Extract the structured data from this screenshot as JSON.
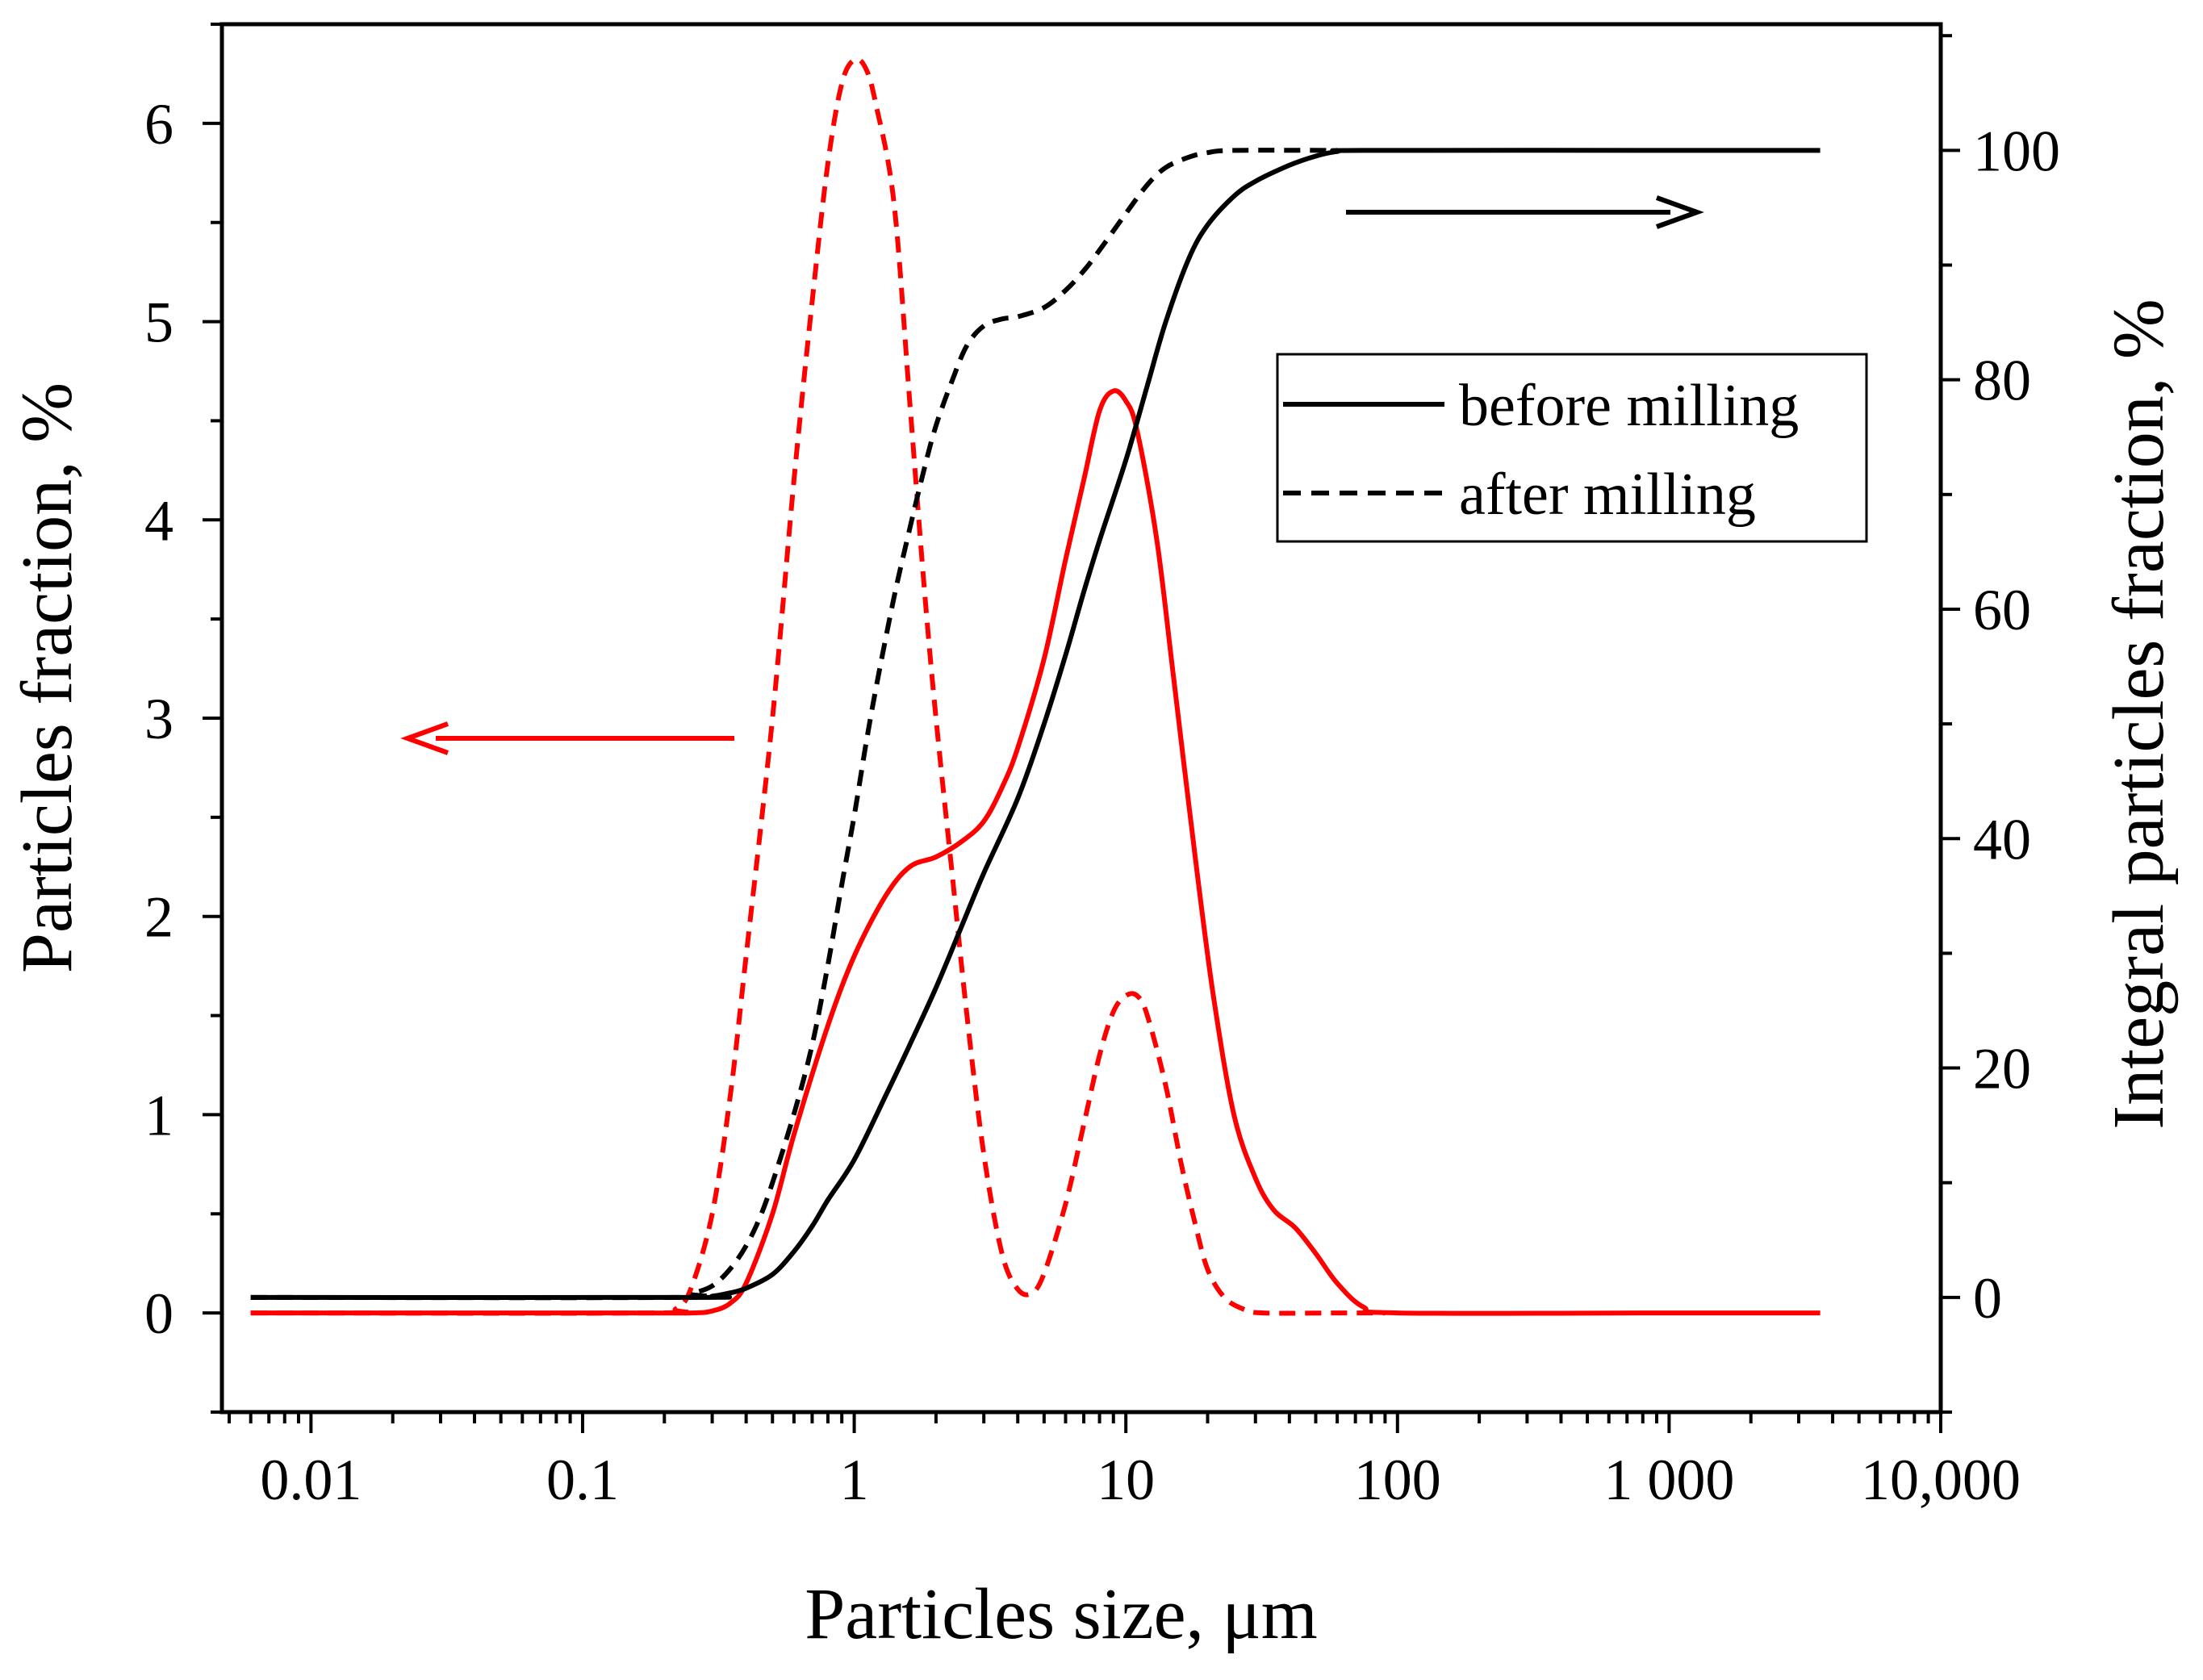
{
  "chart_data": {
    "type": "line",
    "title": "",
    "xlabel": "Particles size, μm",
    "ylabel": "Particles fraction, %",
    "y2label": "Integral particles fraction, %",
    "xscale": "log",
    "xlim": [
      0.0047,
      10000
    ],
    "ylim": [
      -0.5,
      6.5
    ],
    "y2lim": [
      -10,
      111
    ],
    "x_tick_values": [
      0.01,
      0.1,
      1,
      10,
      100,
      1000,
      10000
    ],
    "x_tick_labels": [
      "0.01",
      "0.1",
      "1",
      "10",
      "100",
      "1 000",
      "10,000"
    ],
    "y_ticks": [
      0,
      1,
      2,
      3,
      4,
      5,
      6
    ],
    "y2_ticks": [
      0,
      20,
      40,
      60,
      80,
      100
    ],
    "legend": {
      "position": "top-right",
      "entries": [
        {
          "label": "before milling",
          "style": "solid"
        },
        {
          "label": "after milling",
          "style": "dashed"
        }
      ]
    },
    "annotations": [
      {
        "type": "arrow",
        "direction": "left",
        "meaning": "red curves use left axis",
        "color": "#ff0000"
      },
      {
        "type": "arrow",
        "direction": "right",
        "meaning": "black curves use right axis",
        "color": "#000000"
      }
    ],
    "series": [
      {
        "name": "before milling (fraction)",
        "axis": "left",
        "color": "#ff0000",
        "style": "solid",
        "points": [
          [
            0.006,
            0
          ],
          [
            0.15,
            0
          ],
          [
            0.25,
            0.0
          ],
          [
            0.3,
            0.01
          ],
          [
            0.35,
            0.05
          ],
          [
            0.4,
            0.15
          ],
          [
            0.5,
            0.5
          ],
          [
            0.6,
            0.9
          ],
          [
            0.8,
            1.45
          ],
          [
            1.0,
            1.8
          ],
          [
            1.3,
            2.1
          ],
          [
            1.6,
            2.25
          ],
          [
            2.0,
            2.3
          ],
          [
            2.5,
            2.38
          ],
          [
            3.0,
            2.48
          ],
          [
            3.5,
            2.65
          ],
          [
            4.0,
            2.85
          ],
          [
            5.0,
            3.3
          ],
          [
            6.0,
            3.8
          ],
          [
            7.0,
            4.2
          ],
          [
            8.0,
            4.55
          ],
          [
            9.0,
            4.65
          ],
          [
            10.0,
            4.6
          ],
          [
            11.0,
            4.45
          ],
          [
            13.0,
            3.9
          ],
          [
            15.0,
            3.2
          ],
          [
            18.0,
            2.3
          ],
          [
            21.0,
            1.6
          ],
          [
            25.0,
            1.0
          ],
          [
            30.0,
            0.68
          ],
          [
            35.0,
            0.52
          ],
          [
            42.0,
            0.43
          ],
          [
            50.0,
            0.3
          ],
          [
            60.0,
            0.15
          ],
          [
            75.0,
            0.03
          ],
          [
            100.0,
            0
          ],
          [
            1000,
            0
          ],
          [
            3600,
            0
          ]
        ]
      },
      {
        "name": "after milling (fraction)",
        "axis": "left",
        "color": "#ff0000",
        "style": "dashed",
        "points": [
          [
            0.006,
            0
          ],
          [
            0.18,
            0
          ],
          [
            0.22,
            0.02
          ],
          [
            0.25,
            0.12
          ],
          [
            0.3,
            0.5
          ],
          [
            0.35,
            1.1
          ],
          [
            0.4,
            1.8
          ],
          [
            0.5,
            3.0
          ],
          [
            0.6,
            4.2
          ],
          [
            0.7,
            5.1
          ],
          [
            0.8,
            5.8
          ],
          [
            0.9,
            6.2
          ],
          [
            1.0,
            6.32
          ],
          [
            1.1,
            6.28
          ],
          [
            1.2,
            6.1
          ],
          [
            1.4,
            5.6
          ],
          [
            1.6,
            4.6
          ],
          [
            1.8,
            3.7
          ],
          [
            2.0,
            3.0
          ],
          [
            2.3,
            2.2
          ],
          [
            2.6,
            1.5
          ],
          [
            3.0,
            0.8
          ],
          [
            3.5,
            0.3
          ],
          [
            4.0,
            0.12
          ],
          [
            4.5,
            0.1
          ],
          [
            5.0,
            0.2
          ],
          [
            6.0,
            0.55
          ],
          [
            7.0,
            0.95
          ],
          [
            8.0,
            1.3
          ],
          [
            9.0,
            1.52
          ],
          [
            10.0,
            1.6
          ],
          [
            11.0,
            1.6
          ],
          [
            12.0,
            1.5
          ],
          [
            14.0,
            1.15
          ],
          [
            16.0,
            0.75
          ],
          [
            18.0,
            0.45
          ],
          [
            20.0,
            0.22
          ],
          [
            23.0,
            0.08
          ],
          [
            27.0,
            0.02
          ],
          [
            32.0,
            0.0
          ],
          [
            60.0,
            0
          ],
          [
            90.0,
            0
          ]
        ]
      },
      {
        "name": "before milling (integral)",
        "axis": "right",
        "color": "#000000",
        "style": "solid",
        "points": [
          [
            0.006,
            0
          ],
          [
            0.25,
            0
          ],
          [
            0.3,
            0.1
          ],
          [
            0.35,
            0.4
          ],
          [
            0.4,
            0.8
          ],
          [
            0.5,
            2.0
          ],
          [
            0.6,
            4.0
          ],
          [
            0.7,
            6.2
          ],
          [
            0.8,
            8.5
          ],
          [
            1.0,
            12.0
          ],
          [
            1.3,
            17.5
          ],
          [
            1.6,
            22.0
          ],
          [
            2.0,
            27.0
          ],
          [
            2.5,
            32.5
          ],
          [
            3.0,
            37.0
          ],
          [
            4.0,
            43.5
          ],
          [
            5.0,
            50.0
          ],
          [
            6.0,
            56.0
          ],
          [
            7.0,
            61.5
          ],
          [
            8.0,
            66.0
          ],
          [
            10.0,
            73.0
          ],
          [
            12.0,
            79.5
          ],
          [
            14.0,
            85.0
          ],
          [
            17.0,
            90.5
          ],
          [
            20.0,
            93.5
          ],
          [
            25.0,
            96.0
          ],
          [
            30.0,
            97.3
          ],
          [
            40.0,
            98.7
          ],
          [
            50.0,
            99.5
          ],
          [
            60.0,
            99.9
          ],
          [
            75.0,
            100
          ],
          [
            1000,
            100
          ],
          [
            3600,
            100
          ]
        ]
      },
      {
        "name": "after milling (integral)",
        "axis": "right",
        "color": "#000000",
        "style": "dashed",
        "points": [
          [
            0.006,
            0
          ],
          [
            0.22,
            0
          ],
          [
            0.25,
            0.3
          ],
          [
            0.3,
            1.0
          ],
          [
            0.35,
            2.5
          ],
          [
            0.4,
            4.5
          ],
          [
            0.45,
            7.0
          ],
          [
            0.5,
            10.0
          ],
          [
            0.6,
            16.0
          ],
          [
            0.7,
            22.0
          ],
          [
            0.8,
            29.0
          ],
          [
            0.9,
            36.0
          ],
          [
            1.0,
            42.0
          ],
          [
            1.1,
            48.0
          ],
          [
            1.2,
            53.0
          ],
          [
            1.4,
            61.0
          ],
          [
            1.6,
            67.0
          ],
          [
            1.8,
            72.0
          ],
          [
            2.0,
            76.0
          ],
          [
            2.3,
            80.0
          ],
          [
            2.6,
            83.0
          ],
          [
            3.0,
            84.7
          ],
          [
            3.5,
            85.3
          ],
          [
            4.0,
            85.5
          ],
          [
            5.0,
            86.3
          ],
          [
            6.0,
            87.8
          ],
          [
            7.0,
            89.5
          ],
          [
            8.0,
            91.3
          ],
          [
            10.0,
            94.5
          ],
          [
            12.0,
            97.0
          ],
          [
            14.0,
            98.5
          ],
          [
            17.0,
            99.4
          ],
          [
            20.0,
            99.8
          ],
          [
            25.0,
            100
          ],
          [
            60.0,
            100
          ]
        ]
      }
    ]
  }
}
